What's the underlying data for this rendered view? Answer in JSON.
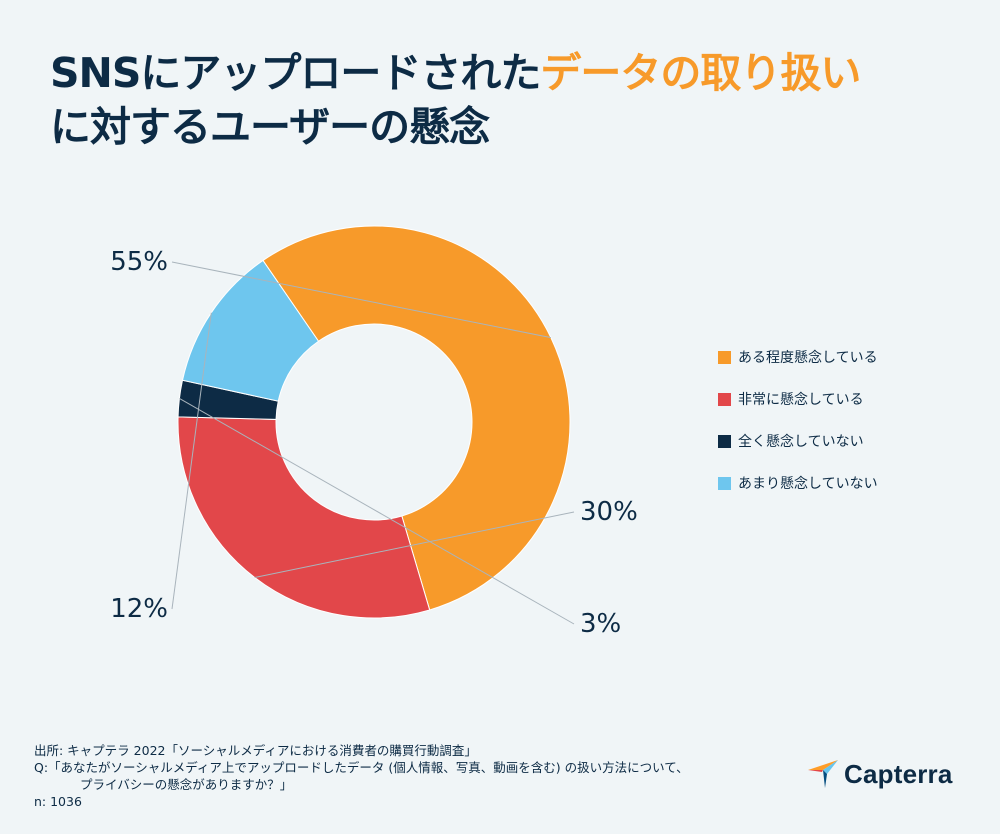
{
  "title": {
    "line1_part1": "SNSにアップロードされた",
    "line1_highlight": "データの取り扱い",
    "line2": "に対するユーザーの懸念"
  },
  "colors": {
    "orange": "#f79a2a",
    "red": "#e2474a",
    "navy": "#0d2b45",
    "lightblue": "#6ec6ee",
    "background": "#f0f5f7"
  },
  "chart_data": {
    "type": "pie",
    "title": "SNSにアップロードされたデータの取り扱いに対するユーザーの懸念",
    "donut": true,
    "categories": [
      "ある程度懸念している",
      "非常に懸念している",
      "全く懸念していない",
      "あまり懸念していない"
    ],
    "values": [
      55,
      30,
      3,
      12
    ],
    "unit": "%",
    "data_labels": [
      "55%",
      "30%",
      "3%",
      "12%"
    ],
    "colors": [
      "#f79a2a",
      "#e2474a",
      "#0d2b45",
      "#6ec6ee"
    ],
    "legend_position": "right"
  },
  "legend": [
    {
      "label": "ある程度懸念している",
      "color": "#f79a2a"
    },
    {
      "label": "非常に懸念している",
      "color": "#e2474a"
    },
    {
      "label": "全く懸念していない",
      "color": "#0d2b45"
    },
    {
      "label": "あまり懸念していない",
      "color": "#6ec6ee"
    }
  ],
  "footer": {
    "source": "出所: キャプテラ 2022「ソーシャルメディアにおける消費者の購買行動調査」",
    "question_line1": "Q:「あなたがソーシャルメディア上でアップロードしたデータ (個人情報、写真、動画を含む) の扱い方法について、",
    "question_line2": "プライバシーの懸念がありますか？」",
    "n": "n: 1036"
  },
  "logo": {
    "text": "Capterra"
  }
}
